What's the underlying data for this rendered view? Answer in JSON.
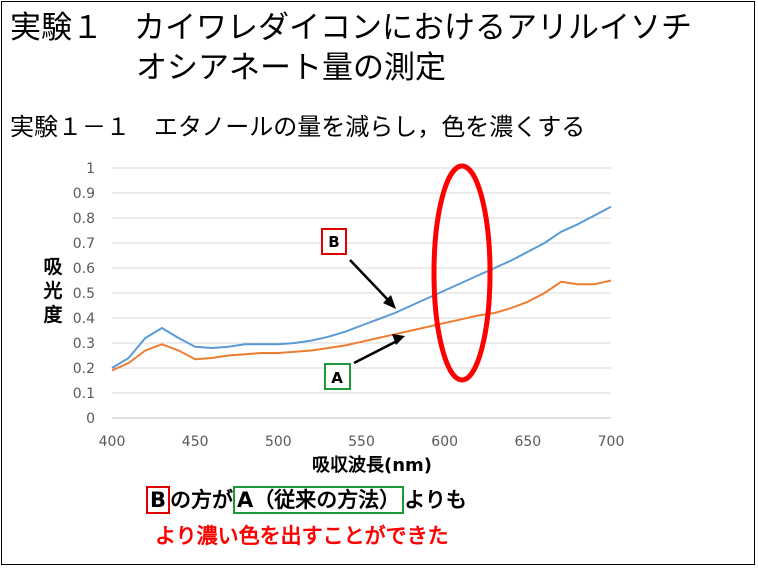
{
  "title_line1": "実験１　カイワレダイコンにおけるアリルイソチ",
  "title_line2": "オシアネート量の測定",
  "subtitle": "実験１－１　エタノールの量を減らし，色を濃くする",
  "conclusion": {
    "b_label": "B",
    "part1": "の方が",
    "a_text": "A（従来の方法）",
    "part2": "よりも",
    "line2": "より濃い色を出すことができた"
  },
  "colors": {
    "series_b": "#5b9bd5",
    "series_a": "#ed7d31",
    "highlight": "#ff0000",
    "box_b": "#e00000",
    "box_a": "#1a9a3a"
  },
  "chart_data": {
    "type": "line",
    "xlabel": "吸収波長(nm)",
    "ylabel": "吸光度",
    "xlim": [
      400,
      700
    ],
    "ylim": [
      0,
      1
    ],
    "x_ticks": [
      "400",
      "450",
      "500",
      "550",
      "600",
      "650",
      "700"
    ],
    "y_ticks": [
      "0",
      "0.1",
      "0.2",
      "0.3",
      "0.4",
      "0.5",
      "0.6",
      "0.7",
      "0.8",
      "0.9",
      "1"
    ],
    "grid": true,
    "series": [
      {
        "name": "B",
        "x": [
          400,
          410,
          420,
          430,
          440,
          450,
          460,
          470,
          480,
          490,
          500,
          510,
          520,
          530,
          540,
          550,
          560,
          570,
          580,
          590,
          600,
          610,
          620,
          630,
          640,
          650,
          660,
          670,
          680,
          690,
          700
        ],
        "y": [
          0.2,
          0.24,
          0.32,
          0.36,
          0.32,
          0.285,
          0.28,
          0.285,
          0.295,
          0.295,
          0.295,
          0.3,
          0.31,
          0.325,
          0.345,
          0.37,
          0.395,
          0.42,
          0.45,
          0.48,
          0.51,
          0.54,
          0.57,
          0.6,
          0.63,
          0.665,
          0.7,
          0.745,
          0.775,
          0.81,
          0.845
        ]
      },
      {
        "name": "A",
        "x": [
          400,
          410,
          420,
          430,
          440,
          450,
          460,
          470,
          480,
          490,
          500,
          510,
          520,
          530,
          540,
          550,
          560,
          570,
          580,
          590,
          600,
          610,
          620,
          630,
          640,
          650,
          660,
          670,
          680,
          690,
          700
        ],
        "y": [
          0.19,
          0.22,
          0.27,
          0.295,
          0.27,
          0.235,
          0.24,
          0.25,
          0.255,
          0.26,
          0.26,
          0.265,
          0.27,
          0.28,
          0.29,
          0.305,
          0.32,
          0.335,
          0.35,
          0.365,
          0.38,
          0.395,
          0.41,
          0.42,
          0.44,
          0.465,
          0.5,
          0.545,
          0.535,
          0.535,
          0.55
        ]
      }
    ]
  }
}
